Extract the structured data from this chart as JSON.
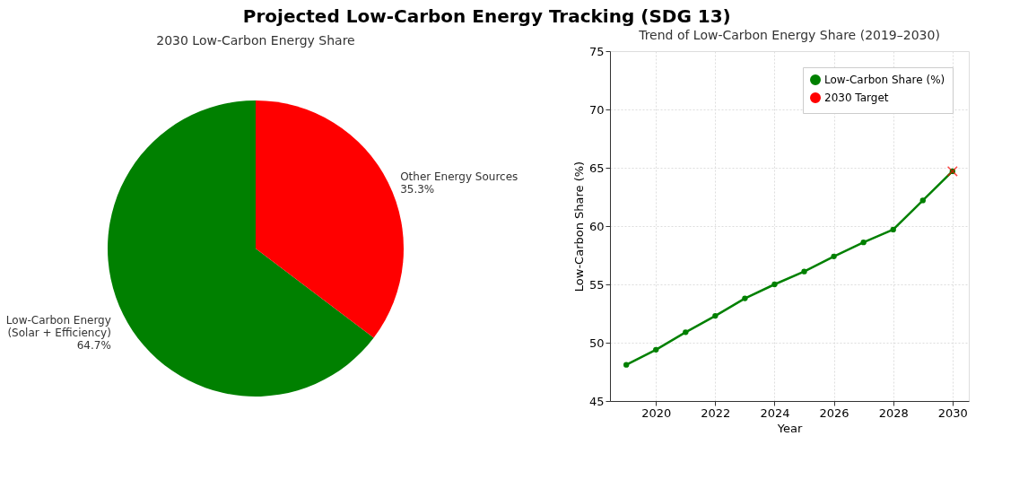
{
  "chart_data": [
    {
      "type": "pie",
      "title": "2030 Low-Carbon Energy Share",
      "annotations": [
        "Projected Low-Carbon Energy Tracking (SDG 13)"
      ],
      "categories": [
        "Low-Carbon Energy\n(Solar + Efficiency)",
        "Other Energy Sources"
      ],
      "values": [
        64.7,
        35.3
      ],
      "colors": [
        "#008000",
        "#ff0000"
      ],
      "value_labels": [
        "64.7%",
        "35.3%"
      ]
    },
    {
      "type": "line",
      "title": "Trend of Low-Carbon Energy Share (2019–2030)",
      "xlabel": "Year",
      "ylabel": "Low-Carbon Share (%)",
      "xlim": [
        2018.45,
        2030.55
      ],
      "xticks": [
        2020,
        2022,
        2024,
        2026,
        2028,
        2030
      ],
      "ylim": [
        45,
        75
      ],
      "yticks": [
        45,
        50,
        55,
        60,
        65,
        70,
        75
      ],
      "grid": true,
      "legend": "top right",
      "series": [
        {
          "name": "Low-Carbon Share (%)",
          "color": "#008000",
          "marker": "circle",
          "x": [
            2019,
            2020,
            2021,
            2022,
            2023,
            2024,
            2025,
            2026,
            2027,
            2028,
            2029,
            2030
          ],
          "values": [
            48.1,
            49.4,
            50.9,
            52.3,
            53.8,
            55.0,
            56.1,
            57.4,
            58.6,
            59.7,
            62.2,
            64.7
          ]
        },
        {
          "name": "2030 Target",
          "type": "scatter",
          "color": "#ff0000",
          "marker": "cross",
          "x": [
            2030
          ],
          "values": [
            64.7
          ]
        }
      ]
    }
  ]
}
